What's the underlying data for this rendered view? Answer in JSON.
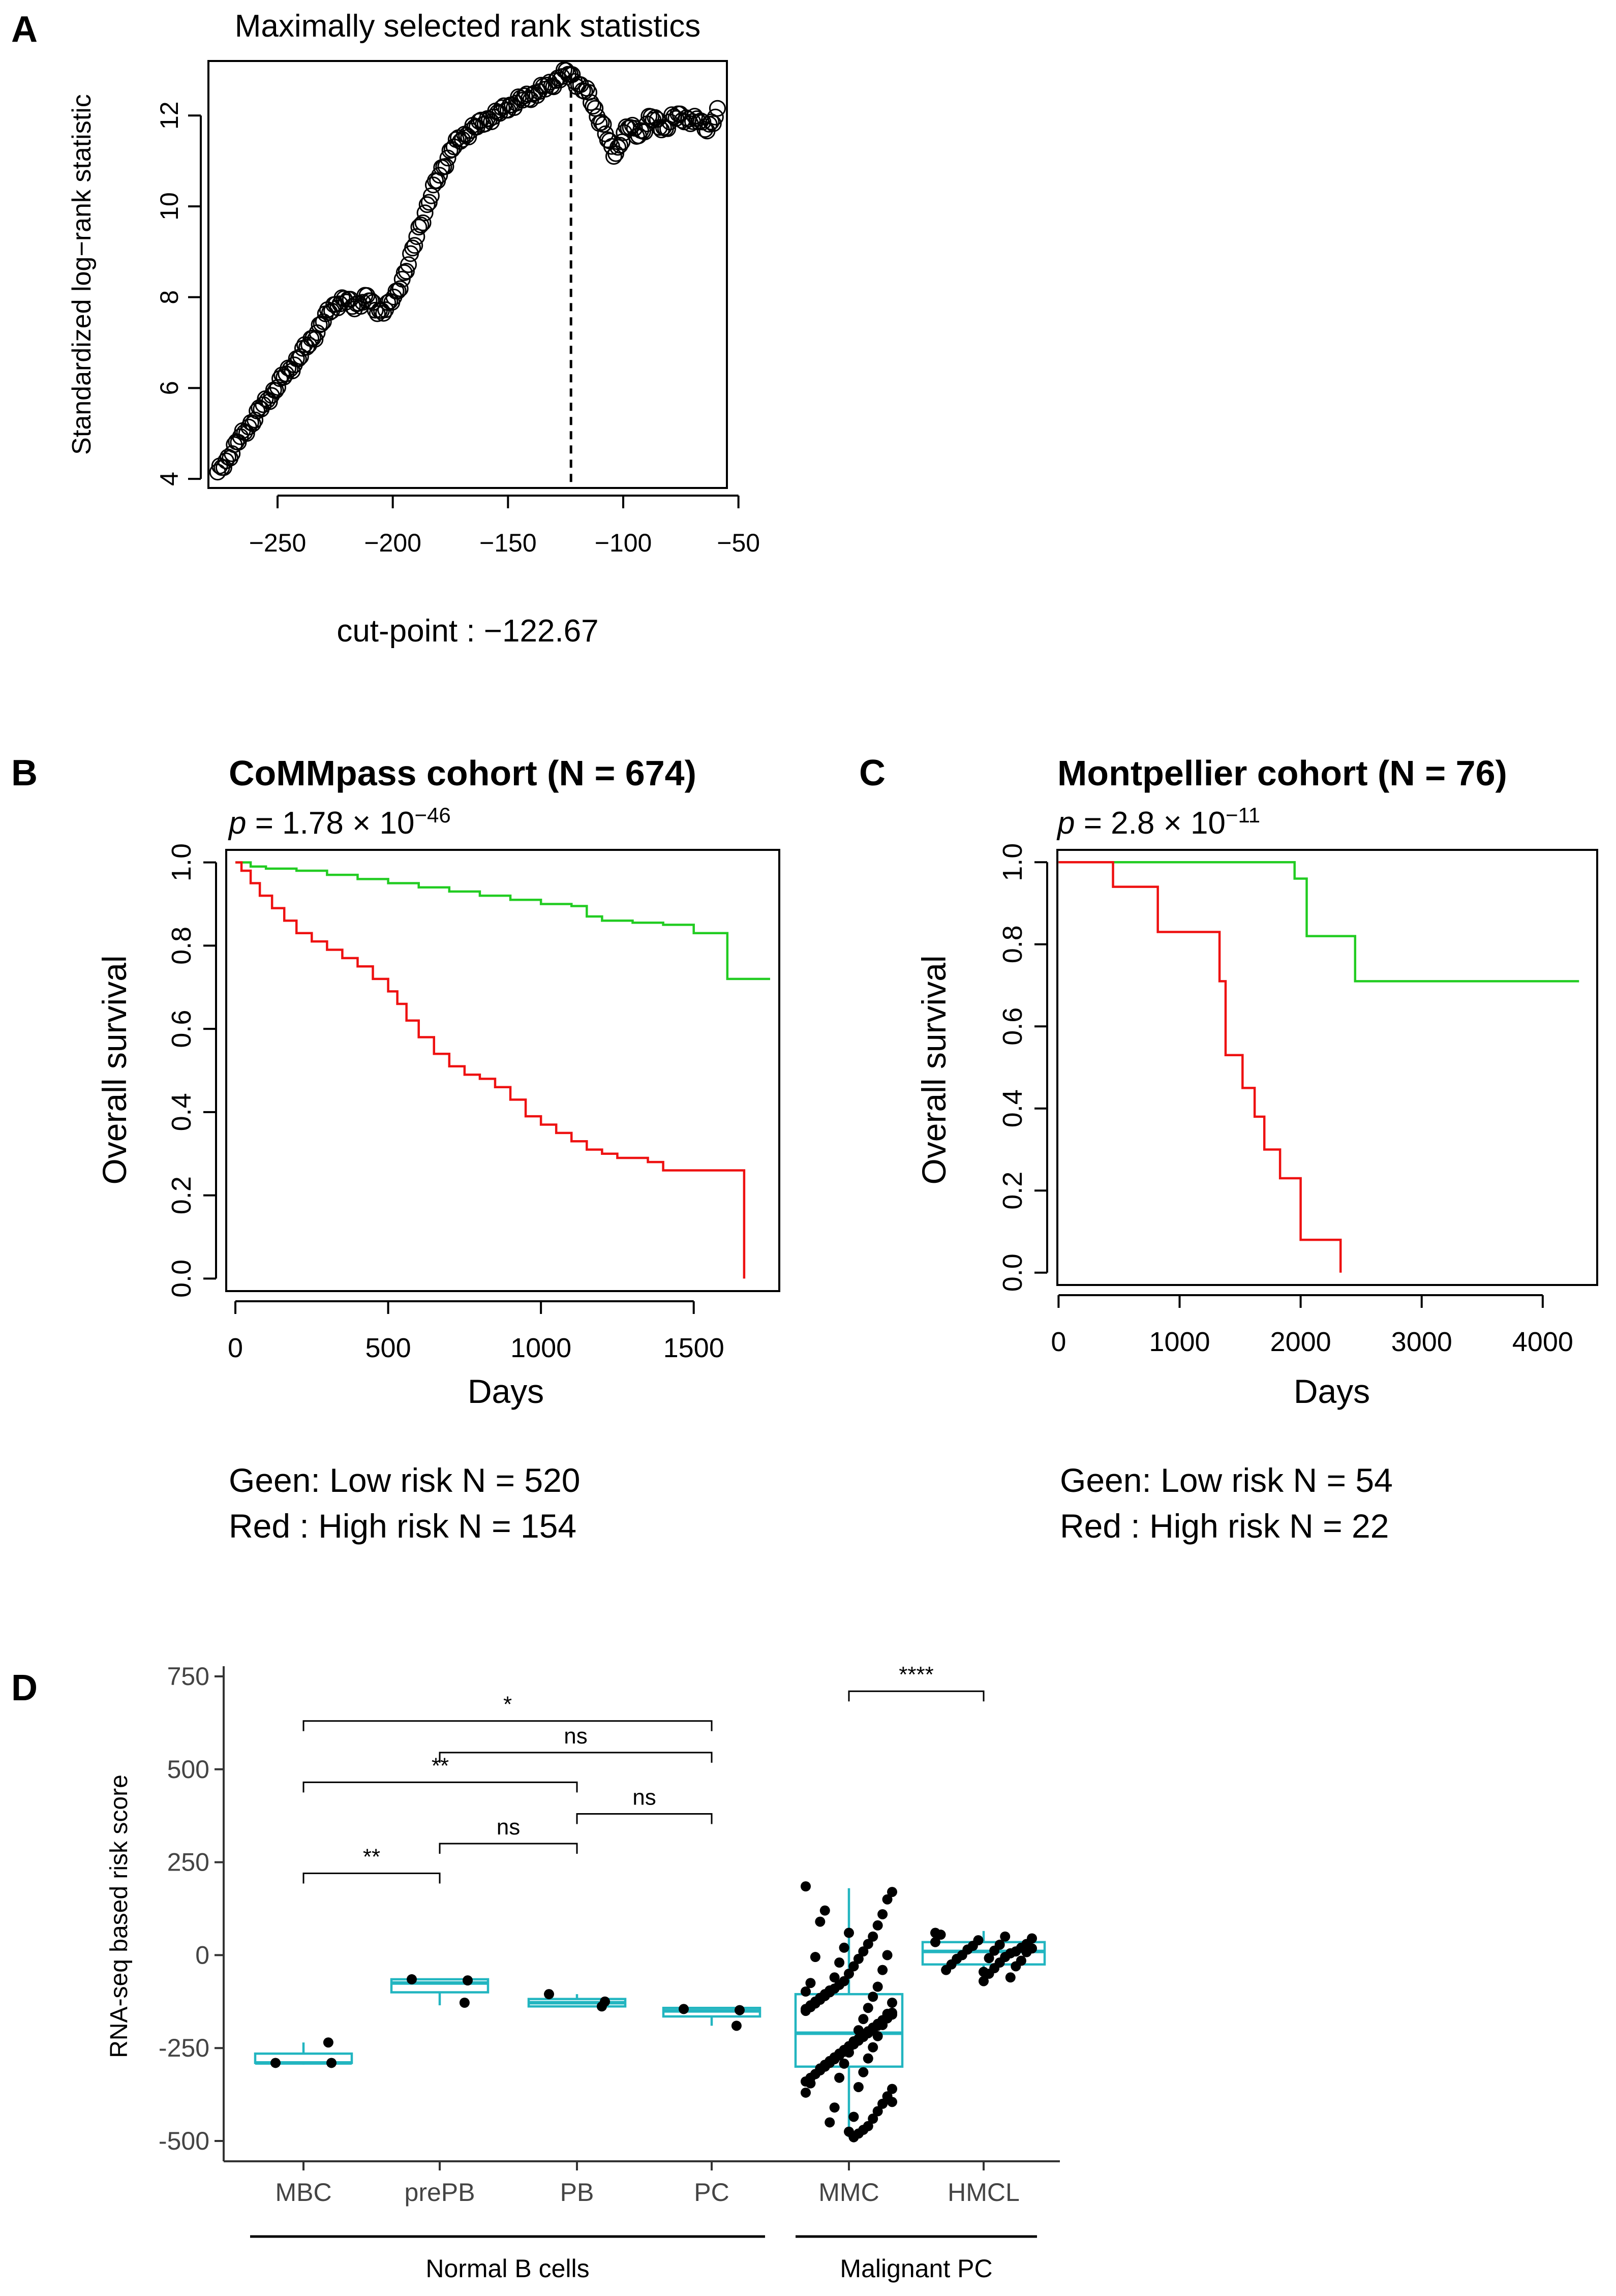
{
  "chart_data": [
    {
      "panel": "A",
      "type": "scatter",
      "title": "Maximally selected rank statistics",
      "xlabel": "",
      "ylabel": "Standardized log−rank statistic",
      "xlim": [
        -280,
        -55
      ],
      "ylim": [
        3.8,
        13.2
      ],
      "xticks": [
        -250,
        -200,
        -150,
        -100,
        -50
      ],
      "xtick_labels": [
        "−250",
        "−200",
        "−150",
        "−100",
        "−50"
      ],
      "yticks": [
        4,
        6,
        8,
        10,
        12
      ],
      "yticks_labels": [
        "4",
        "6",
        "8",
        "10",
        "12"
      ],
      "marker": "open-circle",
      "vline": -122.67,
      "cutpoint_label": "cut-point : −122.67",
      "curve_x": [
        -276,
        -270,
        -262,
        -255,
        -248,
        -242,
        -236,
        -230,
        -225,
        -221,
        -217,
        -214,
        -211,
        -208,
        -205,
        -202,
        -199,
        -196,
        -192,
        -188,
        -183,
        -178,
        -174,
        -170,
        -166,
        -162,
        -158,
        -154,
        -150,
        -146,
        -142,
        -138,
        -134,
        -130,
        -127,
        -124,
        -121,
        -118,
        -115,
        -112,
        -109,
        -106,
        -104,
        -102,
        -100,
        -97,
        -94,
        -91,
        -88,
        -85,
        -82,
        -79,
        -76,
        -73,
        -70,
        -67,
        -64,
        -61,
        -59
      ],
      "curve_y": [
        4.1,
        4.6,
        5.2,
        5.7,
        6.2,
        6.6,
        7.0,
        7.5,
        7.85,
        7.95,
        7.8,
        7.9,
        8.0,
        7.75,
        7.7,
        7.8,
        8.0,
        8.4,
        8.9,
        9.6,
        10.3,
        10.9,
        11.3,
        11.5,
        11.7,
        11.8,
        11.95,
        12.05,
        12.2,
        12.3,
        12.4,
        12.5,
        12.6,
        12.75,
        12.85,
        12.95,
        12.8,
        12.6,
        12.45,
        12.1,
        11.8,
        11.35,
        11.15,
        11.3,
        11.6,
        11.75,
        11.6,
        11.7,
        11.95,
        11.85,
        11.7,
        11.9,
        12.0,
        11.95,
        11.85,
        11.9,
        11.75,
        11.85,
        12.05
      ]
    },
    {
      "panel": "B",
      "type": "line",
      "title": "CoMMpass cohort (N = 674)",
      "pvalue_prefix": "p",
      "pvalue_text": "= 1.78 × 10",
      "pvalue_exp": "−46",
      "xlabel": "Days",
      "ylabel": "Overall survival",
      "xlim": [
        -30,
        1780
      ],
      "ylim": [
        -0.03,
        1.03
      ],
      "xticks": [
        0,
        500,
        1000,
        1500
      ],
      "yticks": [
        0.0,
        0.2,
        0.4,
        0.6,
        0.8,
        1.0
      ],
      "ytick_labels": [
        "0.0",
        "0.2",
        "0.4",
        "0.6",
        "0.8",
        "1.0"
      ],
      "series": [
        {
          "name": "Low risk",
          "color": "#22cc22",
          "x": [
            0,
            50,
            100,
            200,
            300,
            400,
            500,
            600,
            700,
            800,
            900,
            1000,
            1100,
            1150,
            1200,
            1300,
            1400,
            1460,
            1500,
            1600,
            1610,
            1660,
            1750
          ],
          "y": [
            1.0,
            0.99,
            0.985,
            0.98,
            0.97,
            0.96,
            0.95,
            0.94,
            0.93,
            0.92,
            0.91,
            0.9,
            0.895,
            0.87,
            0.86,
            0.855,
            0.85,
            0.85,
            0.83,
            0.83,
            0.72,
            0.72,
            0.72
          ]
        },
        {
          "name": "High risk",
          "color": "#ee1111",
          "x": [
            0,
            20,
            50,
            80,
            120,
            160,
            200,
            250,
            300,
            350,
            400,
            450,
            500,
            530,
            560,
            600,
            650,
            700,
            750,
            800,
            850,
            900,
            950,
            1000,
            1050,
            1100,
            1150,
            1200,
            1250,
            1300,
            1350,
            1400,
            1500,
            1600,
            1650,
            1660,
            1665
          ],
          "y": [
            1.0,
            0.98,
            0.95,
            0.92,
            0.89,
            0.86,
            0.83,
            0.81,
            0.79,
            0.77,
            0.75,
            0.72,
            0.69,
            0.66,
            0.62,
            0.58,
            0.54,
            0.51,
            0.49,
            0.48,
            0.46,
            0.43,
            0.39,
            0.37,
            0.35,
            0.33,
            0.31,
            0.3,
            0.29,
            0.29,
            0.28,
            0.26,
            0.26,
            0.26,
            0.26,
            0.26,
            0.0
          ]
        }
      ],
      "legend_lines": [
        "Geen: Low risk N = 520",
        "Red : High risk N = 154"
      ]
    },
    {
      "panel": "C",
      "type": "line",
      "title": "Montpellier cohort (N = 76)",
      "pvalue_prefix": "p",
      "pvalue_text": "= 2.8 × 10",
      "pvalue_exp": "−11",
      "xlabel": "Days",
      "ylabel": "Overall survival",
      "xlim": [
        -10,
        4450
      ],
      "ylim": [
        -0.03,
        1.03
      ],
      "xticks": [
        0,
        1000,
        2000,
        3000,
        4000
      ],
      "yticks": [
        0.0,
        0.2,
        0.4,
        0.6,
        0.8,
        1.0
      ],
      "ytick_labels": [
        "0.0",
        "0.2",
        "0.4",
        "0.6",
        "0.8",
        "1.0"
      ],
      "series": [
        {
          "name": "Low risk",
          "color": "#22cc22",
          "x": [
            0,
            1950,
            2050,
            2450,
            4300
          ],
          "y": [
            1.0,
            0.96,
            0.82,
            0.71,
            0.71
          ]
        },
        {
          "name": "High risk",
          "color": "#ee1111",
          "x": [
            0,
            450,
            820,
            1330,
            1380,
            1520,
            1620,
            1700,
            1830,
            2000,
            2330
          ],
          "y": [
            1.0,
            0.94,
            0.83,
            0.71,
            0.53,
            0.45,
            0.38,
            0.3,
            0.23,
            0.08,
            0.0
          ]
        }
      ],
      "legend_lines": [
        "Geen: Low risk N = 54",
        "Red : High risk N = 22"
      ]
    },
    {
      "panel": "D",
      "type": "box",
      "title": "",
      "xlabel": "",
      "ylabel": "RNA-seq based risk score",
      "ylim": [
        -525,
        760
      ],
      "yticks": [
        -500,
        -250,
        0,
        250,
        500,
        750
      ],
      "ytick_labels": [
        "-500",
        "-250",
        "0",
        "250",
        "500",
        "750"
      ],
      "box_color": "#22b5c0",
      "categories": [
        "MBC",
        "prePB",
        "PB",
        "PC",
        "MMC",
        "HMCL"
      ],
      "boxes": [
        {
          "category": "MBC",
          "min": -295,
          "q1": -290,
          "median": -290,
          "q3": -265,
          "max": -235
        },
        {
          "category": "prePB",
          "min": -135,
          "q1": -100,
          "median": -75,
          "q3": -65,
          "max": -65
        },
        {
          "category": "PB",
          "min": -140,
          "q1": -138,
          "median": -128,
          "q3": -118,
          "max": -105
        },
        {
          "category": "PC",
          "min": -190,
          "q1": -165,
          "median": -150,
          "q3": -142,
          "max": -140
        },
        {
          "category": "MMC",
          "min": -490,
          "q1": -300,
          "median": -210,
          "q3": -105,
          "max": 180
        },
        {
          "category": "HMCL",
          "min": -70,
          "q1": -25,
          "median": 10,
          "q3": 35,
          "max": 65
        }
      ],
      "points": {
        "MBC": [
          -290,
          -290,
          -235
        ],
        "prePB": [
          -65,
          -68,
          -128
        ],
        "PB": [
          -105,
          -125,
          -138
        ],
        "PC": [
          -145,
          -148,
          -190
        ],
        "HMCL": [
          60,
          45,
          30,
          20,
          10,
          5,
          -5,
          -20,
          -35,
          -50,
          -70,
          40,
          25,
          15,
          0,
          -10,
          -25,
          -40,
          55,
          35,
          18,
          8,
          -15,
          -30,
          -60,
          50,
          28,
          12,
          -8,
          -45
        ],
        "MMC": [
          185,
          170,
          150,
          110,
          80,
          50,
          30,
          10,
          -10,
          -30,
          -50,
          -70,
          -80,
          -90,
          -100,
          -110,
          -120,
          -130,
          -140,
          -150,
          -160,
          -170,
          -180,
          -190,
          -200,
          -210,
          -220,
          -230,
          -240,
          -250,
          -260,
          -270,
          -280,
          -290,
          -300,
          -310,
          -320,
          -330,
          -340,
          -360,
          -380,
          -400,
          -420,
          -440,
          -460,
          -470,
          -480,
          -490,
          60,
          20,
          -20,
          -60,
          -95,
          -105,
          -115,
          -125,
          -135,
          -145,
          -155,
          -165,
          -175,
          -185,
          -195,
          -205,
          -215,
          -225,
          -235,
          -245,
          -255,
          -265,
          -275,
          -285,
          -295,
          -305,
          -320,
          -345,
          -370,
          -395,
          0,
          -40,
          -85,
          -112,
          -142,
          -172,
          -202,
          -232,
          -262,
          -292,
          -330,
          -410,
          -450,
          120,
          90,
          -5,
          -75,
          -98,
          -128,
          -158,
          -188,
          -218,
          -248,
          -278,
          -315,
          -355,
          -435,
          -475
        ]
      },
      "brackets": [
        {
          "from": "MBC",
          "to": "prePB",
          "y": 220,
          "label": "**"
        },
        {
          "from": "prePB",
          "to": "PB",
          "y": 300,
          "label": "ns"
        },
        {
          "from": "PB",
          "to": "PC",
          "y": 380,
          "label": "ns"
        },
        {
          "from": "MBC",
          "to": "PB",
          "y": 465,
          "label": "**"
        },
        {
          "from": "prePB",
          "to": "PC",
          "y": 545,
          "label": "ns"
        },
        {
          "from": "MBC",
          "to": "PC",
          "y": 630,
          "label": "*"
        },
        {
          "from": "MMC",
          "to": "HMCL",
          "y": 710,
          "label": "****"
        }
      ],
      "groups": [
        {
          "label": "Normal B cells",
          "categories": [
            "MBC",
            "prePB",
            "PB",
            "PC"
          ]
        },
        {
          "label": "Malignant PC",
          "categories": [
            "MMC",
            "HMCL"
          ]
        }
      ]
    }
  ]
}
